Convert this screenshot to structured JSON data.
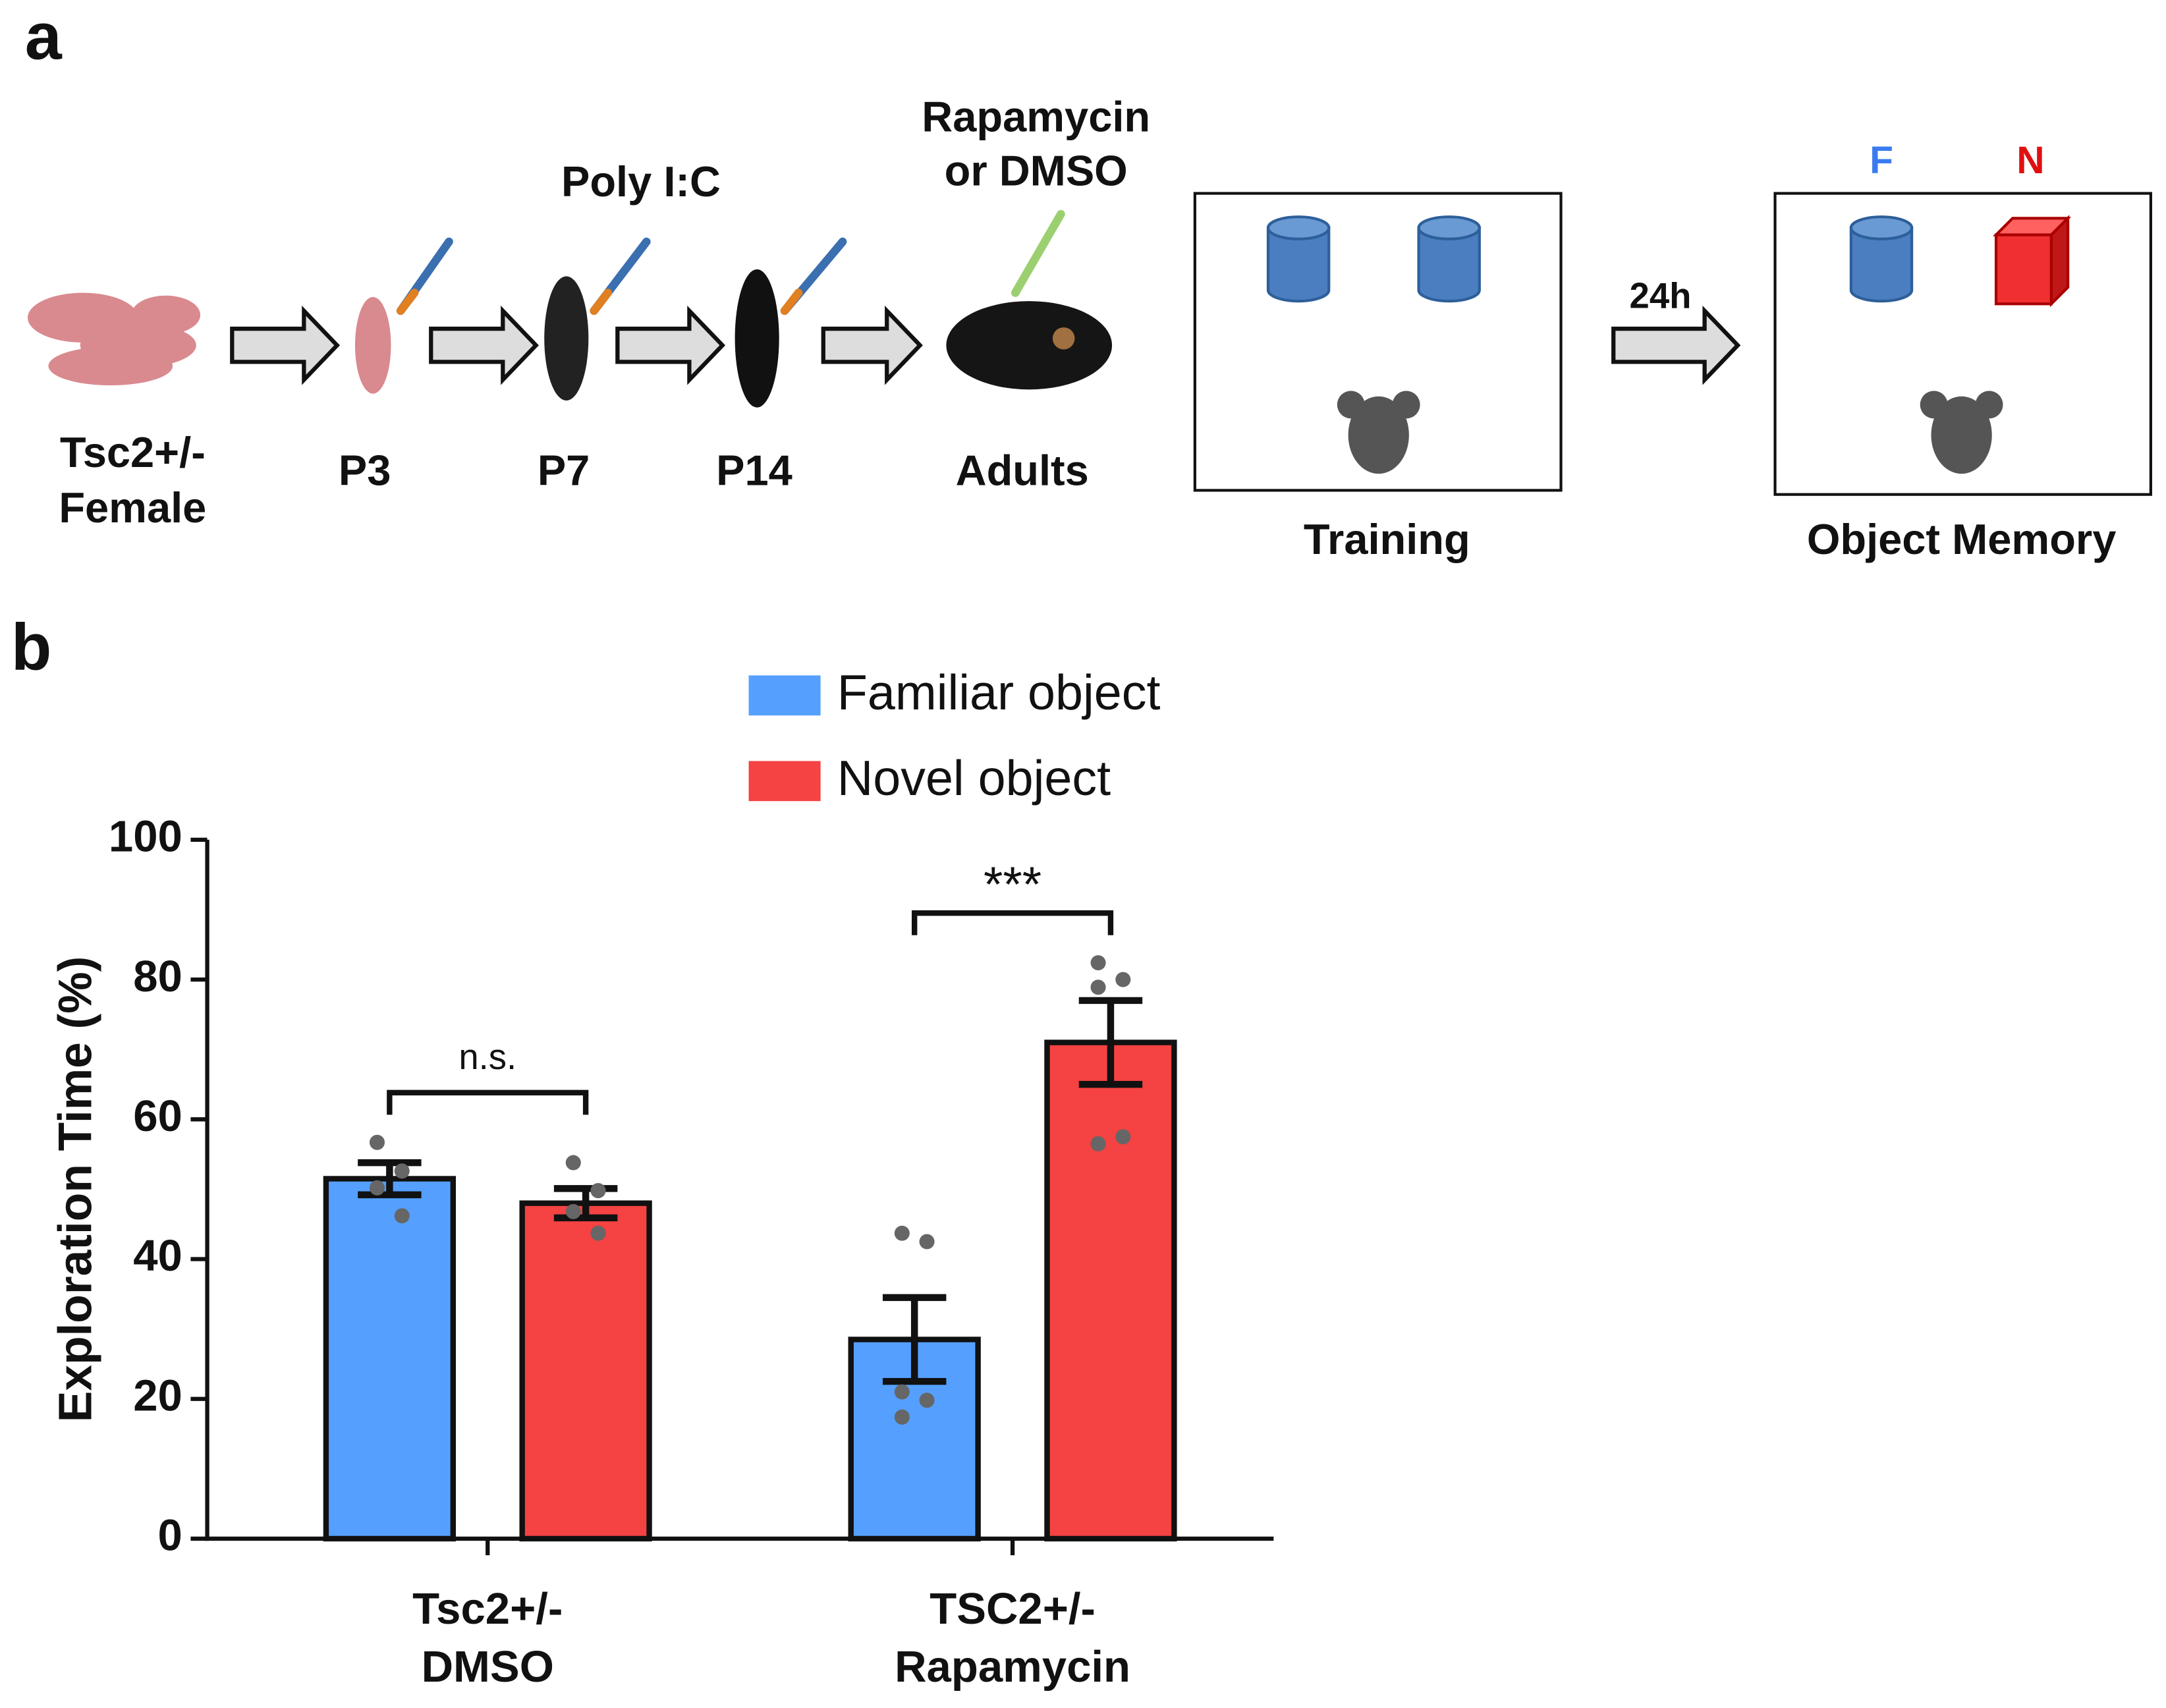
{
  "panel_labels": [
    "a",
    "b"
  ],
  "diagram": {
    "stages": [
      [
        "Tsc2+/-",
        "Female"
      ],
      [
        "P3"
      ],
      [
        "P7"
      ],
      [
        "P14"
      ],
      [
        "Adults"
      ]
    ],
    "poly_ic": "Poly I:C",
    "treatment": [
      "Rapamycin",
      "or DMSO"
    ],
    "delay": "24h",
    "training": "Training",
    "test": "Object Memory",
    "familiar_tag": "F",
    "novel_tag": "N"
  },
  "chart_data": {
    "type": "bar",
    "categories": [
      [
        "Tsc2+/-",
        "DMSO"
      ],
      [
        "TSC2+/-",
        "Rapamycin"
      ]
    ],
    "series": [
      {
        "name": "Familiar object",
        "color": "#55a0ff",
        "values": [
          51.5,
          28.5
        ],
        "errors": [
          2.3,
          6.0
        ],
        "points": [
          [
            56.7,
            52.6,
            50.2,
            46.2
          ],
          [
            43.7,
            42.5,
            21.0,
            19.8,
            17.4
          ]
        ]
      },
      {
        "name": "Novel object",
        "color": "#f54242",
        "values": [
          48.0,
          71.0
        ],
        "errors": [
          2.1,
          6.0
        ],
        "points": [
          [
            53.8,
            49.8,
            46.8,
            43.7
          ],
          [
            82.4,
            80.0,
            78.9,
            57.5,
            56.5
          ]
        ]
      }
    ],
    "significance": [
      "n.s.",
      "***"
    ],
    "ylabel": "Exploration Time (%)",
    "ylim": [
      0,
      100
    ],
    "yticks": [
      0,
      20,
      40,
      60,
      80,
      100
    ]
  }
}
